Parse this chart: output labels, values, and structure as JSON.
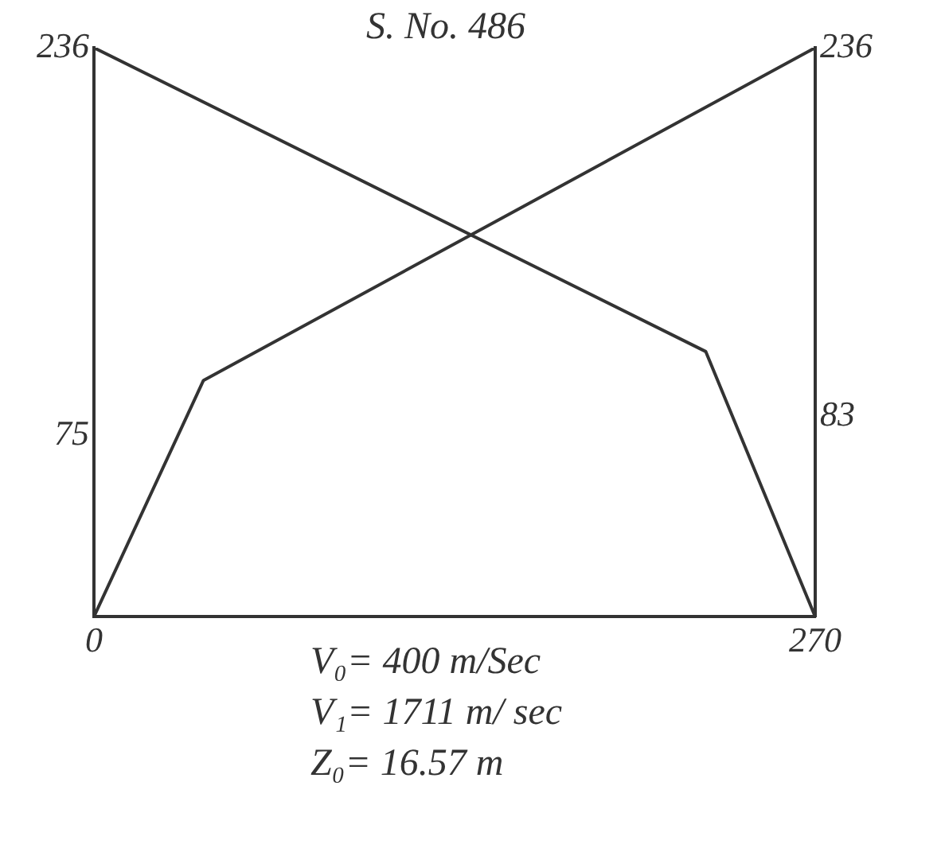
{
  "chart_data": {
    "type": "line",
    "title": "S. No. 486",
    "series": [
      {
        "color": "#333333",
        "x": [
          0,
          41,
          270
        ],
        "values": [
          0,
          98,
          236
        ]
      },
      {
        "color": "#333333",
        "x": [
          0,
          229,
          270
        ],
        "values": [
          236,
          110,
          0
        ]
      }
    ],
    "xlim": [
      0,
      270
    ],
    "xticks": [
      0,
      270
    ],
    "ylim": [
      0,
      236
    ],
    "yticks": [
      75,
      236
    ],
    "y2lim": [
      0,
      236
    ],
    "y2ticks": [
      83,
      236
    ],
    "grid": false,
    "legend": false,
    "marker": "none",
    "line_style": "solid",
    "annotations": [
      "V₀= 400 m/Sec",
      "V₁= 1711 m/ sec",
      "Z₀= 16.57 m"
    ]
  }
}
